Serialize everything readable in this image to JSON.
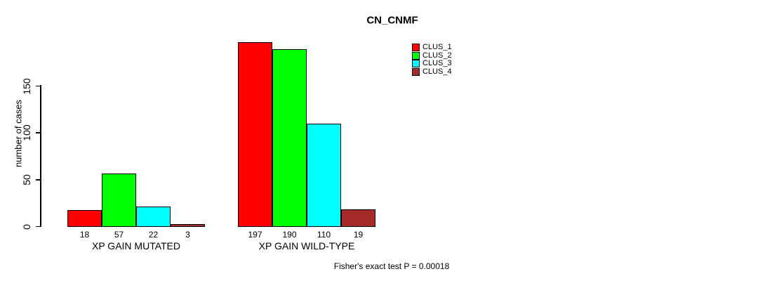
{
  "chart_data": {
    "type": "bar",
    "title": "CN_CNMF",
    "ylabel": "number of cases",
    "xlabel": "",
    "categories": [
      "XP GAIN MUTATED",
      "XP GAIN WILD-TYPE"
    ],
    "series": [
      {
        "name": "CLUS_1",
        "color": "#ff0000",
        "values": [
          18,
          197
        ]
      },
      {
        "name": "CLUS_2",
        "color": "#00ff00",
        "values": [
          57,
          190
        ]
      },
      {
        "name": "CLUS_3",
        "color": "#00ffff",
        "values": [
          22,
          110
        ]
      },
      {
        "name": "CLUS_4",
        "color": "#a52a2a",
        "values": [
          3,
          19
        ]
      }
    ],
    "yticks": [
      0,
      50,
      100,
      150
    ],
    "ylim": [
      0,
      200
    ],
    "grid": false,
    "legend_position": "top-right",
    "bar_value_labels_shown": true,
    "annotation": "Fisher's exact test P = 0.00018"
  }
}
